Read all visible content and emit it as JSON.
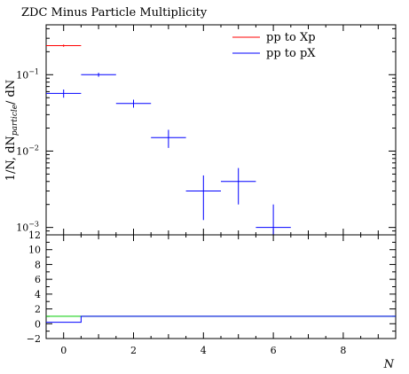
{
  "chart_data": [
    {
      "type": "scatter",
      "title": "ZDC Minus Particle Multiplicity",
      "xlabel": "N",
      "ylabel": "1/N dN_particle/dN",
      "ylabel_parts": {
        "main": "1/N, dN",
        "sub": "particle",
        "tail": "/ dN"
      },
      "yscale": "log",
      "xlim": [
        -0.5,
        9.5
      ],
      "ylim": [
        0.0008,
        0.45
      ],
      "x_tick_labels": [
        "0",
        "2",
        "4",
        "6",
        "8"
      ],
      "y_tick_labels": [
        {
          "base": "10",
          "exp": "−1",
          "value": 0.1
        },
        {
          "base": "10",
          "exp": "−2",
          "value": 0.01
        },
        {
          "base": "10",
          "exp": "−3",
          "value": 0.001
        }
      ],
      "legend_position": "top-right",
      "series": [
        {
          "name": "pp to Xp",
          "color": "#ff0000",
          "points": [
            {
              "x": 0,
              "xlo": -0.5,
              "xhi": 0.5,
              "y": 0.24,
              "ylo": 0.232,
              "yhi": 0.248
            }
          ]
        },
        {
          "name": "pp to pX",
          "color": "#0000ff",
          "points": [
            {
              "x": 0,
              "xlo": -0.5,
              "xhi": 0.5,
              "y": 0.057,
              "ylo": 0.05,
              "yhi": 0.064
            },
            {
              "x": 1,
              "xlo": 0.5,
              "xhi": 1.5,
              "y": 0.1,
              "ylo": 0.094,
              "yhi": 0.106
            },
            {
              "x": 2,
              "xlo": 1.5,
              "xhi": 2.5,
              "y": 0.042,
              "ylo": 0.037,
              "yhi": 0.047
            },
            {
              "x": 3,
              "xlo": 2.5,
              "xhi": 3.5,
              "y": 0.015,
              "ylo": 0.011,
              "yhi": 0.019
            },
            {
              "x": 4,
              "xlo": 3.5,
              "xhi": 4.5,
              "y": 0.003,
              "ylo": 0.00125,
              "yhi": 0.0048
            },
            {
              "x": 5,
              "xlo": 4.5,
              "xhi": 5.5,
              "y": 0.004,
              "ylo": 0.002,
              "yhi": 0.006
            },
            {
              "x": 6,
              "xlo": 5.5,
              "xhi": 6.5,
              "y": 0.001,
              "ylo": 0.0008,
              "yhi": 0.002
            }
          ]
        }
      ]
    },
    {
      "type": "line",
      "xlim": [
        -0.5,
        9.5
      ],
      "ylim": [
        -2,
        12
      ],
      "x_tick_labels": [
        "0",
        "2",
        "4",
        "6",
        "8"
      ],
      "y_tick_labels": [
        "−2",
        "0",
        "2",
        "4",
        "6",
        "8",
        "10",
        "12"
      ],
      "y_tick_values": [
        -2,
        0,
        2,
        4,
        6,
        8,
        10,
        12
      ],
      "series": [
        {
          "color": "#00cc00",
          "points": [
            {
              "x": -0.5,
              "y": 1
            },
            {
              "x": 9.5,
              "y": 1
            }
          ]
        },
        {
          "color": "#0000ff",
          "points": [
            {
              "x": -0.5,
              "y": 0.2
            },
            {
              "x": 0.5,
              "y": 0.2
            },
            {
              "x": 0.5,
              "y": 1
            },
            {
              "x": 9.5,
              "y": 1
            }
          ]
        }
      ]
    }
  ]
}
